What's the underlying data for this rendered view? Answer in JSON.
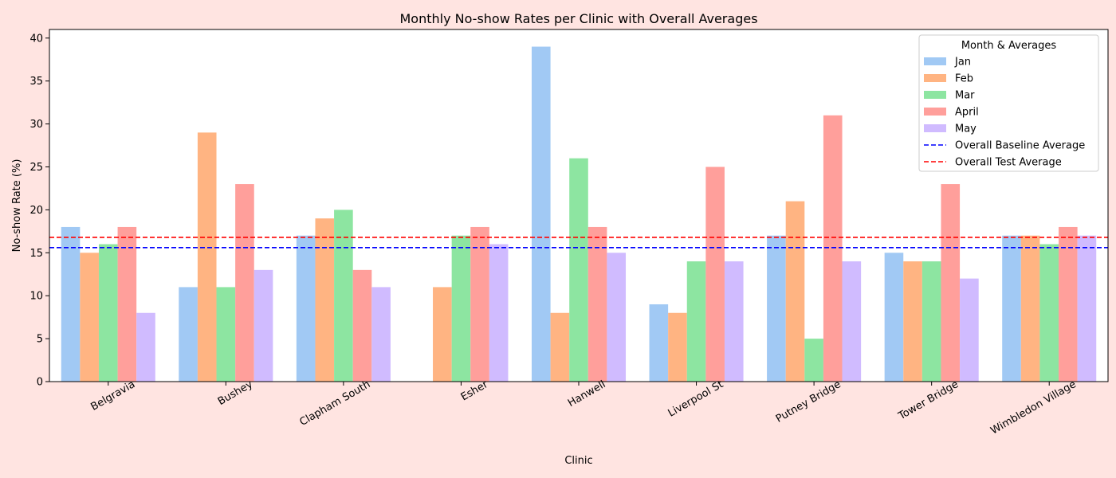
{
  "chart_data": {
    "type": "bar",
    "title": "Monthly No-show Rates per Clinic with Overall Averages",
    "xlabel": "Clinic",
    "ylabel": "No-show Rate (%)",
    "ylim": [
      0,
      41
    ],
    "yticks": [
      0,
      5,
      10,
      15,
      20,
      25,
      30,
      35,
      40
    ],
    "categories": [
      "Belgravia",
      "Bushey",
      "Clapham South",
      "Esher",
      "Hanwell",
      "Liverpool St",
      "Putney Bridge",
      "Tower Bridge",
      "Wimbledon Village"
    ],
    "series": [
      {
        "name": "Jan",
        "color": "#A1C9F4",
        "values": [
          18,
          11,
          17,
          0,
          39,
          9,
          17,
          15,
          17
        ]
      },
      {
        "name": "Feb",
        "color": "#FFB482",
        "values": [
          15,
          29,
          19,
          11,
          8,
          8,
          21,
          14,
          17
        ]
      },
      {
        "name": "Mar",
        "color": "#8DE5A1",
        "values": [
          16,
          11,
          20,
          17,
          26,
          14,
          5,
          14,
          16
        ]
      },
      {
        "name": "April",
        "color": "#FF9F9B",
        "values": [
          18,
          23,
          13,
          18,
          18,
          25,
          31,
          23,
          18
        ]
      },
      {
        "name": "May",
        "color": "#D0BBFF",
        "values": [
          8,
          13,
          11,
          16,
          15,
          14,
          14,
          12,
          17
        ]
      }
    ],
    "reference_lines": [
      {
        "name": "Overall Baseline Average",
        "value": 15.6,
        "color": "#0000FF",
        "style": "dashed"
      },
      {
        "name": "Overall Test Average",
        "value": 16.8,
        "color": "#FF0000",
        "style": "dashed"
      }
    ],
    "legend": {
      "title": "Month & Averages",
      "placement": "top-right"
    },
    "grid": false
  }
}
